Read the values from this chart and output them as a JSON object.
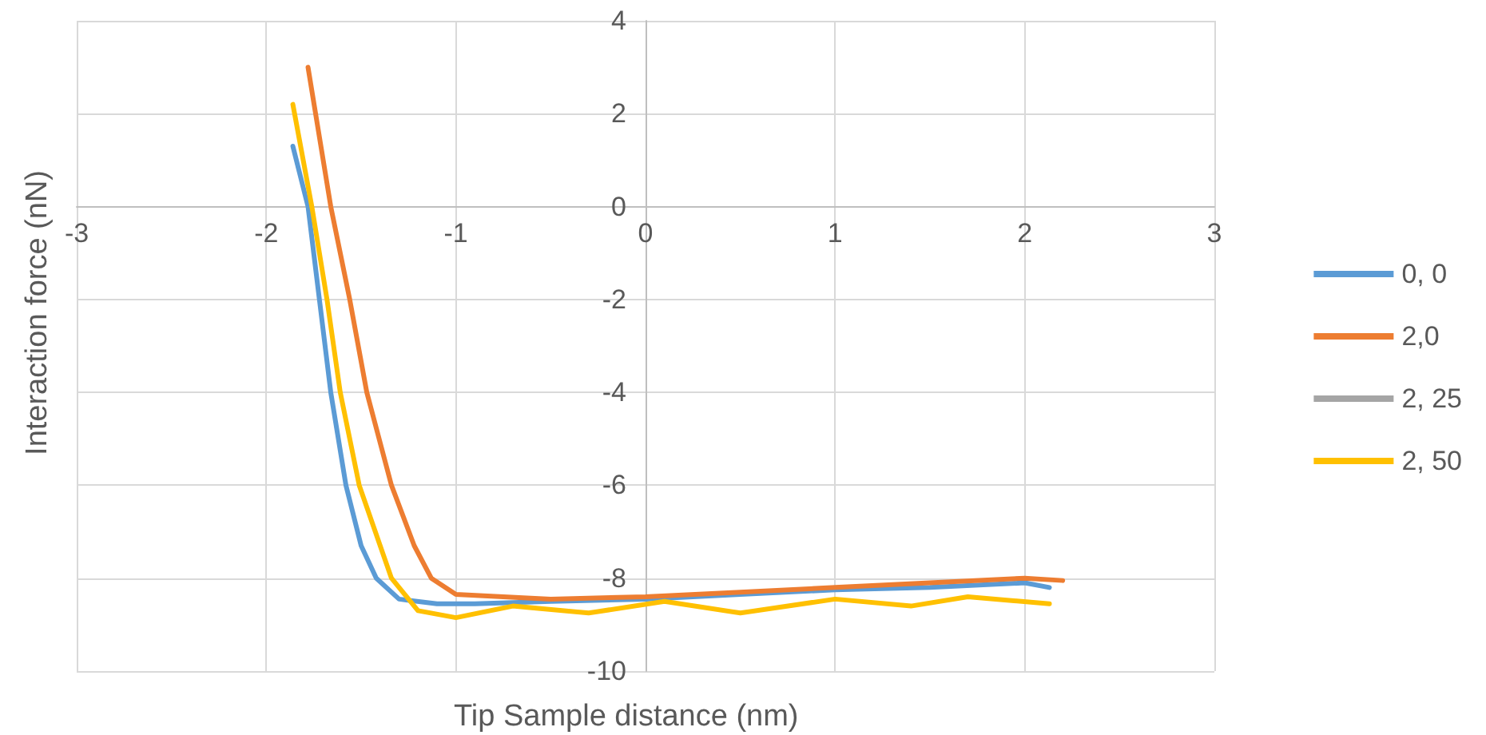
{
  "chart_data": {
    "type": "line",
    "xlabel": "Tip Sample distance (nm)",
    "ylabel": "Interaction force (nN)",
    "xlim": [
      -3,
      3
    ],
    "xticks": [
      -3,
      -2,
      -1,
      0,
      1,
      2,
      3
    ],
    "ylim": [
      -10,
      4
    ],
    "yticks": [
      -10,
      -8,
      -6,
      -4,
      -2,
      0,
      2,
      4
    ],
    "grid": true,
    "legend": "right",
    "marker": "none",
    "line_style": "solid",
    "series": [
      {
        "name": "0, 0",
        "color": "#5b9bd5",
        "x": [
          -1.86,
          -1.78,
          -1.72,
          -1.66,
          -1.58,
          -1.5,
          -1.42,
          -1.3,
          -1.1,
          -0.9,
          -0.5,
          0,
          0.5,
          1,
          1.5,
          2,
          2.13
        ],
        "values": [
          1.3,
          0,
          -2,
          -4,
          -6,
          -7.3,
          -8,
          -8.45,
          -8.55,
          -8.55,
          -8.5,
          -8.45,
          -8.35,
          -8.25,
          -8.2,
          -8.1,
          -8.2
        ]
      },
      {
        "name": "2,0",
        "color": "#ed7d31",
        "x": [
          -1.78,
          -1.66,
          -1.56,
          -1.47,
          -1.34,
          -1.22,
          -1.13,
          -1,
          -0.5,
          0,
          0.5,
          1,
          1.5,
          2,
          2.2
        ],
        "values": [
          3,
          0,
          -2,
          -4,
          -6,
          -7.3,
          -8,
          -8.35,
          -8.45,
          -8.4,
          -8.3,
          -8.2,
          -8.1,
          -8,
          -8.05
        ]
      },
      {
        "name": "2, 25",
        "color": "#a5a5a5"
      },
      {
        "name": "2, 50",
        "color": "#ffc000",
        "x": [
          -1.86,
          -1.76,
          -1.68,
          -1.61,
          -1.51,
          -1.34,
          -1.2,
          -1,
          -0.7,
          -0.3,
          0.1,
          0.5,
          1,
          1.4,
          1.7,
          2.13
        ],
        "values": [
          2.2,
          0,
          -2,
          -4,
          -6,
          -8,
          -8.7,
          -8.85,
          -8.6,
          -8.75,
          -8.5,
          -8.75,
          -8.45,
          -8.6,
          -8.4,
          -8.55
        ]
      }
    ]
  }
}
